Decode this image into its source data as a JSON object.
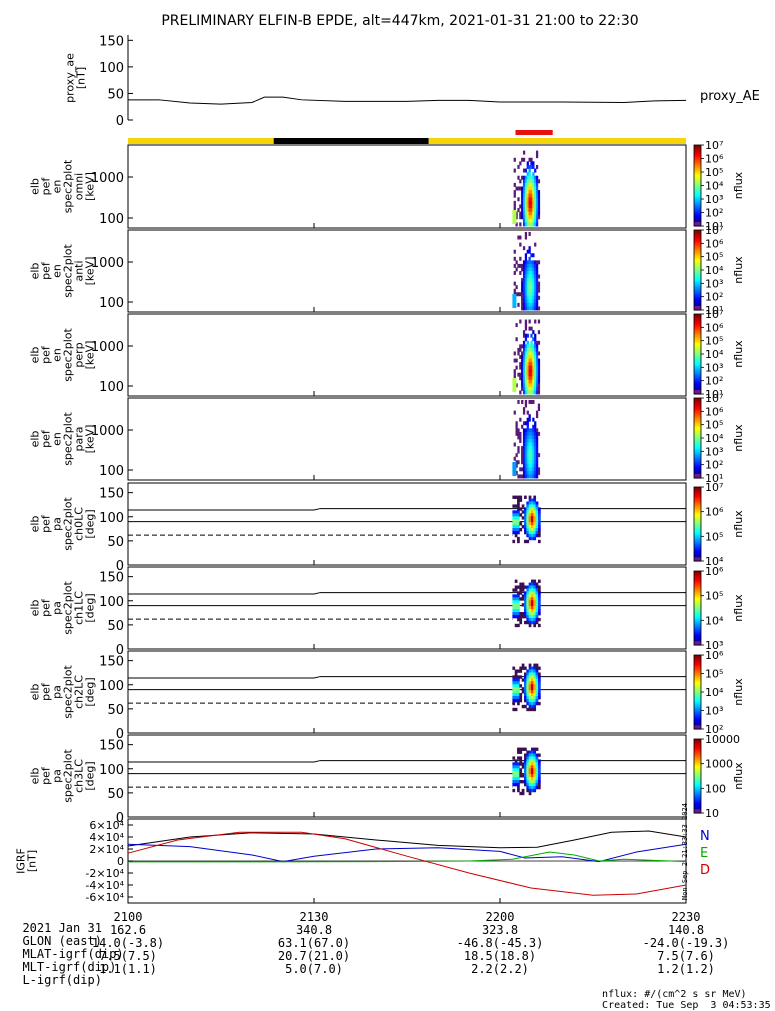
{
  "chart_data": {
    "type": "multi-panel spectrogram",
    "title": "PRELIMINARY ELFIN-B EPDE, alt=447km, 2021-01-31 21:00 to 22:30",
    "x_axis": {
      "ticks": [
        "2100",
        "2130",
        "2200",
        "2230"
      ],
      "range": [
        "2021-01-31 21:00",
        "2021-01-31 22:30"
      ]
    },
    "footer_rows": [
      {
        "label": "2021 Jan 31",
        "values": [
          "2100",
          "2130",
          "2200",
          "2230"
        ]
      },
      {
        "label": "GLON (east)",
        "values": [
          "162.6",
          "340.8",
          "323.8",
          "140.8"
        ]
      },
      {
        "label": "MLAT-igrf(dip)",
        "values": [
          "14.0(-3.8)",
          "63.1(67.0)",
          "-46.8(-45.3)",
          "-24.0(-19.3)"
        ]
      },
      {
        "label": "MLT-igrf(dip)",
        "values": [
          "7.5(7.5)",
          "20.7(21.0)",
          "18.5(18.8)",
          "7.5(7.6)"
        ]
      },
      {
        "label": "L-igrf(dip)",
        "values": [
          "1.1(1.1)",
          "5.0(7.0)",
          "2.2(2.2)",
          "1.2(1.2)"
        ]
      }
    ],
    "proxy_ae": {
      "ylabel": "proxy_ae [nT]",
      "legend": "proxy_AE",
      "yticks": [
        "0",
        "50",
        "100",
        "150"
      ],
      "ylim": [
        0,
        160
      ],
      "series": [
        {
          "t": 0,
          "v": 38
        },
        {
          "t": 5,
          "v": 38
        },
        {
          "t": 10,
          "v": 32
        },
        {
          "t": 15,
          "v": 30
        },
        {
          "t": 20,
          "v": 33
        },
        {
          "t": 22,
          "v": 43
        },
        {
          "t": 25,
          "v": 43
        },
        {
          "t": 28,
          "v": 38
        },
        {
          "t": 35,
          "v": 35
        },
        {
          "t": 45,
          "v": 35
        },
        {
          "t": 50,
          "v": 37
        },
        {
          "t": 55,
          "v": 37
        },
        {
          "t": 60,
          "v": 34
        },
        {
          "t": 70,
          "v": 34
        },
        {
          "t": 80,
          "v": 33
        },
        {
          "t": 85,
          "v": 36
        },
        {
          "t": 90,
          "v": 37
        }
      ]
    },
    "status_bar": {
      "segments": [
        {
          "from": 0,
          "to": 23.5,
          "color": "#f5d50a"
        },
        {
          "from": 23.5,
          "to": 48.5,
          "color": "#000000"
        },
        {
          "from": 48.5,
          "to": 90,
          "color": "#f5d50a"
        }
      ],
      "marker": {
        "from": 62.5,
        "to": 68.5,
        "color": "#e8100e"
      }
    },
    "energy_panels": [
      {
        "ylabel": [
          "elb",
          "pef",
          "en",
          "spec2plot",
          "omni",
          "[keV]"
        ],
        "yticks": [
          "100",
          "1000"
        ],
        "cbar_ticks": [
          "10¹",
          "10²",
          "10³",
          "10⁴",
          "10⁵",
          "10⁶",
          "10⁷"
        ],
        "cbar_label": "nflux",
        "intensity": 1.0
      },
      {
        "ylabel": [
          "elb",
          "pef",
          "en",
          "spec2plot",
          "anti",
          "[keV]"
        ],
        "yticks": [
          "100",
          "1000"
        ],
        "cbar_ticks": [
          "10¹",
          "10²",
          "10³",
          "10⁴",
          "10⁵",
          "10⁶",
          "10⁷"
        ],
        "cbar_label": "nflux",
        "intensity": 0.55
      },
      {
        "ylabel": [
          "elb",
          "pef",
          "en",
          "spec2plot",
          "perp",
          "[keV]"
        ],
        "yticks": [
          "100",
          "1000"
        ],
        "cbar_ticks": [
          "10¹",
          "10²",
          "10³",
          "10⁴",
          "10⁵",
          "10⁶",
          "10⁷"
        ],
        "cbar_label": "nflux",
        "intensity": 1.0
      },
      {
        "ylabel": [
          "elb",
          "pef",
          "en",
          "spec2plot",
          "para",
          "[keV]"
        ],
        "yticks": [
          "100",
          "1000"
        ],
        "cbar_ticks": [
          "10¹",
          "10²",
          "10³",
          "10⁴",
          "10⁵",
          "10⁶",
          "10⁷"
        ],
        "cbar_label": "nflux",
        "intensity": 0.5
      }
    ],
    "pitch_panels": [
      {
        "ylabel": [
          "elb",
          "pef",
          "pa",
          "spec2plot",
          "ch0LC",
          "[deg]"
        ],
        "yticks": [
          "0",
          "50",
          "100",
          "150"
        ],
        "cbar_ticks": [
          "10⁴",
          "10⁵",
          "10⁶",
          "10⁷"
        ],
        "cbar_label": "nflux"
      },
      {
        "ylabel": [
          "elb",
          "pef",
          "pa",
          "spec2plot",
          "ch1LC",
          "[deg]"
        ],
        "yticks": [
          "0",
          "50",
          "100",
          "150"
        ],
        "cbar_ticks": [
          "10³",
          "10⁴",
          "10⁵",
          "10⁶"
        ],
        "cbar_label": "nflux"
      },
      {
        "ylabel": [
          "elb",
          "pef",
          "pa",
          "spec2plot",
          "ch2LC",
          "[deg]"
        ],
        "yticks": [
          "0",
          "50",
          "100",
          "150"
        ],
        "cbar_ticks": [
          "10²",
          "10³",
          "10⁴",
          "10⁵",
          "10⁶"
        ],
        "cbar_label": "nflux"
      },
      {
        "ylabel": [
          "elb",
          "pef",
          "pa",
          "spec2plot",
          "ch3LC",
          "[deg]"
        ],
        "yticks": [
          "0",
          "50",
          "100",
          "150"
        ],
        "cbar_ticks": [
          "10",
          "100",
          "1000",
          "10000"
        ],
        "cbar_label": "nflux"
      }
    ],
    "igrf_panel": {
      "ylabel": "IGRF [nT]",
      "yticks": [
        "-6×10⁴",
        "-4×10⁴",
        "-2×10⁴",
        "0",
        "2×10⁴",
        "4×10⁴",
        "6×10⁴"
      ],
      "ylim": [
        -70000,
        70000
      ],
      "legend": [
        {
          "name": "N",
          "color": "#0000cc"
        },
        {
          "name": "E",
          "color": "#00aa00"
        },
        {
          "name": "D",
          "color": "#cc0000"
        }
      ],
      "series": {
        "total": [
          [
            0,
            25000
          ],
          [
            10,
            40000
          ],
          [
            20,
            47000
          ],
          [
            30,
            45000
          ],
          [
            40,
            35000
          ],
          [
            50,
            26000
          ],
          [
            60,
            22000
          ],
          [
            66,
            23000
          ],
          [
            72,
            35000
          ],
          [
            78,
            48000
          ],
          [
            84,
            50000
          ],
          [
            90,
            40000
          ]
        ],
        "N": [
          [
            0,
            28000
          ],
          [
            10,
            24000
          ],
          [
            20,
            10000
          ],
          [
            25,
            -1000
          ],
          [
            30,
            8000
          ],
          [
            40,
            20000
          ],
          [
            50,
            22000
          ],
          [
            60,
            16000
          ],
          [
            64,
            5000
          ],
          [
            70,
            7000
          ],
          [
            76,
            -1000
          ],
          [
            82,
            15000
          ],
          [
            90,
            28000
          ]
        ],
        "E": [
          [
            0,
            -1500
          ],
          [
            20,
            -1500
          ],
          [
            40,
            -1000
          ],
          [
            55,
            0
          ],
          [
            62,
            3000
          ],
          [
            68,
            15000
          ],
          [
            72,
            10000
          ],
          [
            76,
            0
          ],
          [
            80,
            3000
          ],
          [
            90,
            -1000
          ]
        ],
        "D": [
          [
            0,
            13000
          ],
          [
            8,
            35000
          ],
          [
            18,
            48000
          ],
          [
            28,
            48000
          ],
          [
            35,
            37000
          ],
          [
            45,
            8000
          ],
          [
            55,
            -20000
          ],
          [
            65,
            -45000
          ],
          [
            75,
            -57000
          ],
          [
            82,
            -55000
          ],
          [
            90,
            -40000
          ]
        ]
      }
    },
    "side_stamp": "Mon Sep  2 21:33:33 2024",
    "footnote_lines": [
      "nflux: #/(cm^2 s sr MeV)",
      "Created: Tue Sep  3 04:53:35 2024"
    ]
  }
}
